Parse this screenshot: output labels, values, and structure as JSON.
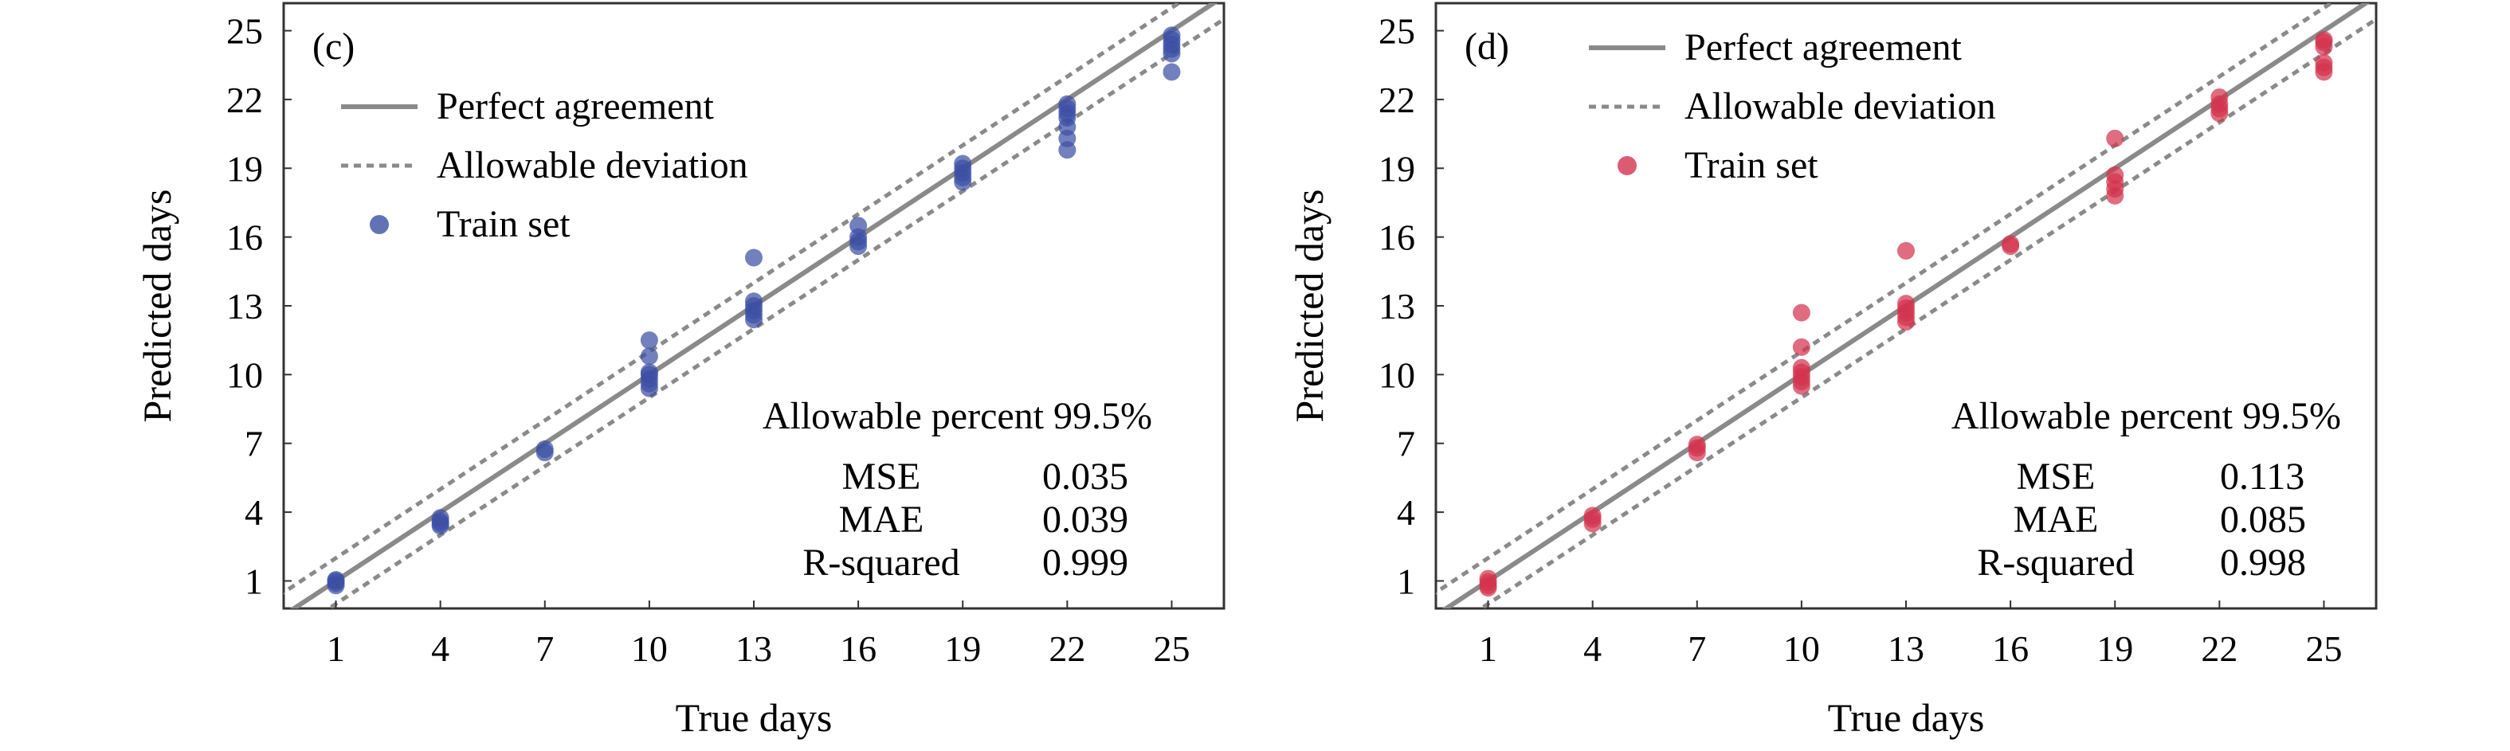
{
  "chart_data": [
    {
      "type": "scatter",
      "panel_label": "(c)",
      "xlabel": "True days",
      "ylabel": "Predicted days",
      "xlim": [
        -0.5,
        26.5
      ],
      "ylim": [
        -0.2,
        26.2
      ],
      "xticks": [
        1,
        4,
        7,
        10,
        13,
        16,
        19,
        22,
        25
      ],
      "yticks": [
        1,
        4,
        7,
        10,
        13,
        16,
        19,
        22,
        25
      ],
      "grid": false,
      "legend": {
        "position": "top-left",
        "entries": [
          {
            "label": "Perfect agreement",
            "style": "solid-line"
          },
          {
            "label": "Allowable deviation",
            "style": "dashed-line"
          },
          {
            "label": "Train set",
            "style": "marker"
          }
        ]
      },
      "reference_lines": {
        "perfect_agreement": "y = x",
        "allowable_deviation": [
          1,
          -1
        ]
      },
      "series": [
        {
          "name": "Train set",
          "color": "#3b4fa3",
          "points": [
            [
              1,
              0.8
            ],
            [
              1,
              1.0
            ],
            [
              1,
              0.9
            ],
            [
              1,
              1.05
            ],
            [
              4,
              3.4
            ],
            [
              4,
              3.6
            ],
            [
              4,
              3.75
            ],
            [
              4,
              3.5
            ],
            [
              7,
              6.6
            ],
            [
              7,
              6.75
            ],
            [
              10,
              9.4
            ],
            [
              10,
              9.6
            ],
            [
              10,
              9.8
            ],
            [
              10,
              10.0
            ],
            [
              10,
              10.1
            ],
            [
              10,
              10.8
            ],
            [
              10,
              11.5
            ],
            [
              13,
              12.4
            ],
            [
              13,
              12.6
            ],
            [
              13,
              12.8
            ],
            [
              13,
              13.0
            ],
            [
              13,
              13.2
            ],
            [
              13,
              15.1
            ],
            [
              16,
              15.6
            ],
            [
              16,
              15.8
            ],
            [
              16,
              16.0
            ],
            [
              16,
              16.5
            ],
            [
              19,
              18.4
            ],
            [
              19,
              18.6
            ],
            [
              19,
              18.8
            ],
            [
              19,
              19.0
            ],
            [
              19,
              19.2
            ],
            [
              22,
              19.8
            ],
            [
              22,
              20.3
            ],
            [
              22,
              20.8
            ],
            [
              22,
              21.2
            ],
            [
              22,
              21.4
            ],
            [
              22,
              21.6
            ],
            [
              22,
              21.8
            ],
            [
              25,
              23.2
            ],
            [
              25,
              24.0
            ],
            [
              25,
              24.2
            ],
            [
              25,
              24.4
            ],
            [
              25,
              24.6
            ],
            [
              25,
              24.8
            ]
          ]
        }
      ],
      "stats": {
        "title": "Allowable percent 99.5%",
        "rows": [
          {
            "metric": "MSE",
            "value": "0.035"
          },
          {
            "metric": "MAE",
            "value": "0.039"
          },
          {
            "metric": "R-squared",
            "value": "0.999"
          }
        ]
      }
    },
    {
      "type": "scatter",
      "panel_label": "(d)",
      "xlabel": "True days",
      "ylabel": "Predicted days",
      "xlim": [
        -0.5,
        26.5
      ],
      "ylim": [
        -0.2,
        26.2
      ],
      "xticks": [
        1,
        4,
        7,
        10,
        13,
        16,
        19,
        22,
        25
      ],
      "yticks": [
        1,
        4,
        7,
        10,
        13,
        16,
        19,
        22,
        25
      ],
      "grid": false,
      "legend": {
        "position": "top-left",
        "entries": [
          {
            "label": "Perfect agreement",
            "style": "solid-line"
          },
          {
            "label": "Allowable deviation",
            "style": "dashed-line"
          },
          {
            "label": "Train set",
            "style": "marker"
          }
        ]
      },
      "reference_lines": {
        "perfect_agreement": "y = x",
        "allowable_deviation": [
          1,
          -1
        ]
      },
      "series": [
        {
          "name": "Train set",
          "color": "#d2334e",
          "points": [
            [
              1,
              0.8
            ],
            [
              1,
              0.95
            ],
            [
              1,
              1.1
            ],
            [
              1,
              0.7
            ],
            [
              4,
              3.5
            ],
            [
              4,
              3.7
            ],
            [
              4,
              3.85
            ],
            [
              7,
              6.6
            ],
            [
              7,
              6.8
            ],
            [
              7,
              6.95
            ],
            [
              10,
              9.5
            ],
            [
              10,
              9.7
            ],
            [
              10,
              9.9
            ],
            [
              10,
              10.1
            ],
            [
              10,
              10.3
            ],
            [
              10,
              11.2
            ],
            [
              10,
              12.7
            ],
            [
              13,
              12.3
            ],
            [
              13,
              12.5
            ],
            [
              13,
              12.7
            ],
            [
              13,
              12.9
            ],
            [
              13,
              13.1
            ],
            [
              13,
              15.4
            ],
            [
              16,
              15.6
            ],
            [
              16,
              15.7
            ],
            [
              19,
              17.8
            ],
            [
              19,
              18.1
            ],
            [
              19,
              18.4
            ],
            [
              19,
              18.7
            ],
            [
              19,
              20.3
            ],
            [
              22,
              21.4
            ],
            [
              22,
              21.6
            ],
            [
              22,
              21.8
            ],
            [
              22,
              22.1
            ],
            [
              25,
              23.2
            ],
            [
              25,
              23.4
            ],
            [
              25,
              23.6
            ],
            [
              25,
              24.3
            ],
            [
              25,
              24.5
            ],
            [
              25,
              24.6
            ]
          ]
        }
      ],
      "stats": {
        "title": "Allowable percent 99.5%",
        "rows": [
          {
            "metric": "MSE",
            "value": "0.113"
          },
          {
            "metric": "MAE",
            "value": "0.085"
          },
          {
            "metric": "R-squared",
            "value": "0.998"
          }
        ]
      }
    }
  ]
}
